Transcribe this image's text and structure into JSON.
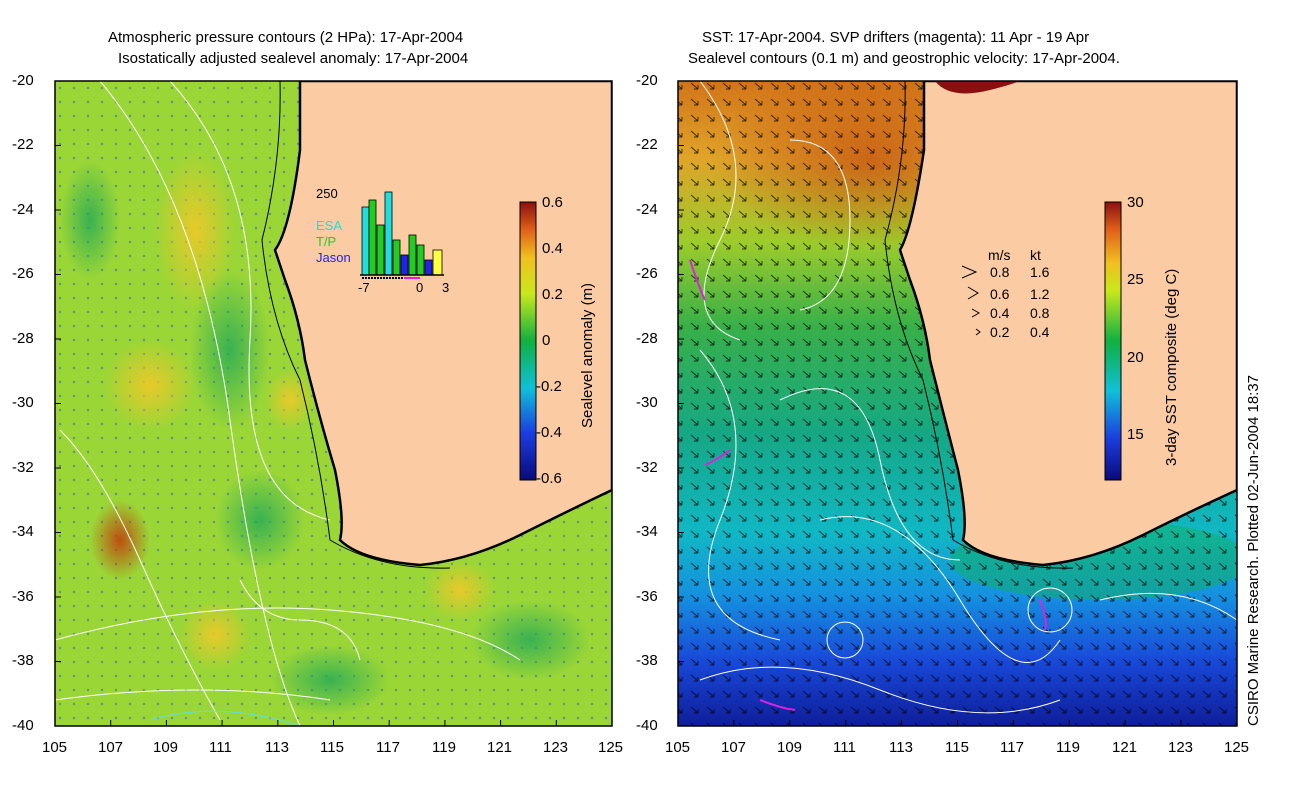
{
  "left_panel": {
    "title_line1": "Atmospheric pressure contours (2 HPa): 17-Apr-2004",
    "title_line2": "Isostatically adjusted sealevel anomaly: 17-Apr-2004",
    "colorbar": {
      "label": "Sealevel anomaly (m)",
      "ticks": [
        "0.6",
        "0.4",
        "0.2",
        "0",
        "-0.2",
        "-0.4",
        "-0.6"
      ],
      "range": [
        -0.6,
        0.6
      ]
    },
    "inset": {
      "ymax_label": "250",
      "legend": [
        "ESA",
        "T/P",
        "Jason"
      ],
      "xticks": [
        "-7",
        "0",
        "3"
      ],
      "colors": {
        "ESA": "#22dddd",
        "T/P": "#22cc22",
        "Jason": "#2222ee",
        "other": "#ffff44"
      }
    }
  },
  "right_panel": {
    "title_line1": "SST: 17-Apr-2004. SVP drifters (magenta): 11 Apr - 19 Apr",
    "title_line2": "Sealevel contours (0.1 m) and geostrophic velocity: 17-Apr-2004.",
    "colorbar": {
      "label": "3-day SST composite (deg C)",
      "ticks": [
        "30",
        "25",
        "20",
        "15"
      ],
      "range": [
        12,
        30
      ]
    },
    "velocity_key": {
      "header_ms": "m/s",
      "header_kt": "kt",
      "rows": [
        {
          "ms": "0.8",
          "kt": "1.6"
        },
        {
          "ms": "0.6",
          "kt": "1.2"
        },
        {
          "ms": "0.4",
          "kt": "0.8"
        },
        {
          "ms": "0.2",
          "kt": "0.4"
        }
      ]
    }
  },
  "axes": {
    "lat_ticks": [
      "-20",
      "-22",
      "-24",
      "-26",
      "-28",
      "-30",
      "-32",
      "-34",
      "-36",
      "-38",
      "-40"
    ],
    "lon_ticks": [
      "105",
      "107",
      "109",
      "111",
      "113",
      "115",
      "117",
      "119",
      "121",
      "123",
      "125"
    ],
    "lat_range": [
      -40,
      -20
    ],
    "lon_range": [
      105,
      125
    ]
  },
  "credit": "CSIRO Marine Research. Plotted 02-Jun-2004 18:37",
  "colors": {
    "land": "#fbcba4",
    "coast": "#000000",
    "contour": "#ffffff",
    "drifter": "#e020e0"
  }
}
